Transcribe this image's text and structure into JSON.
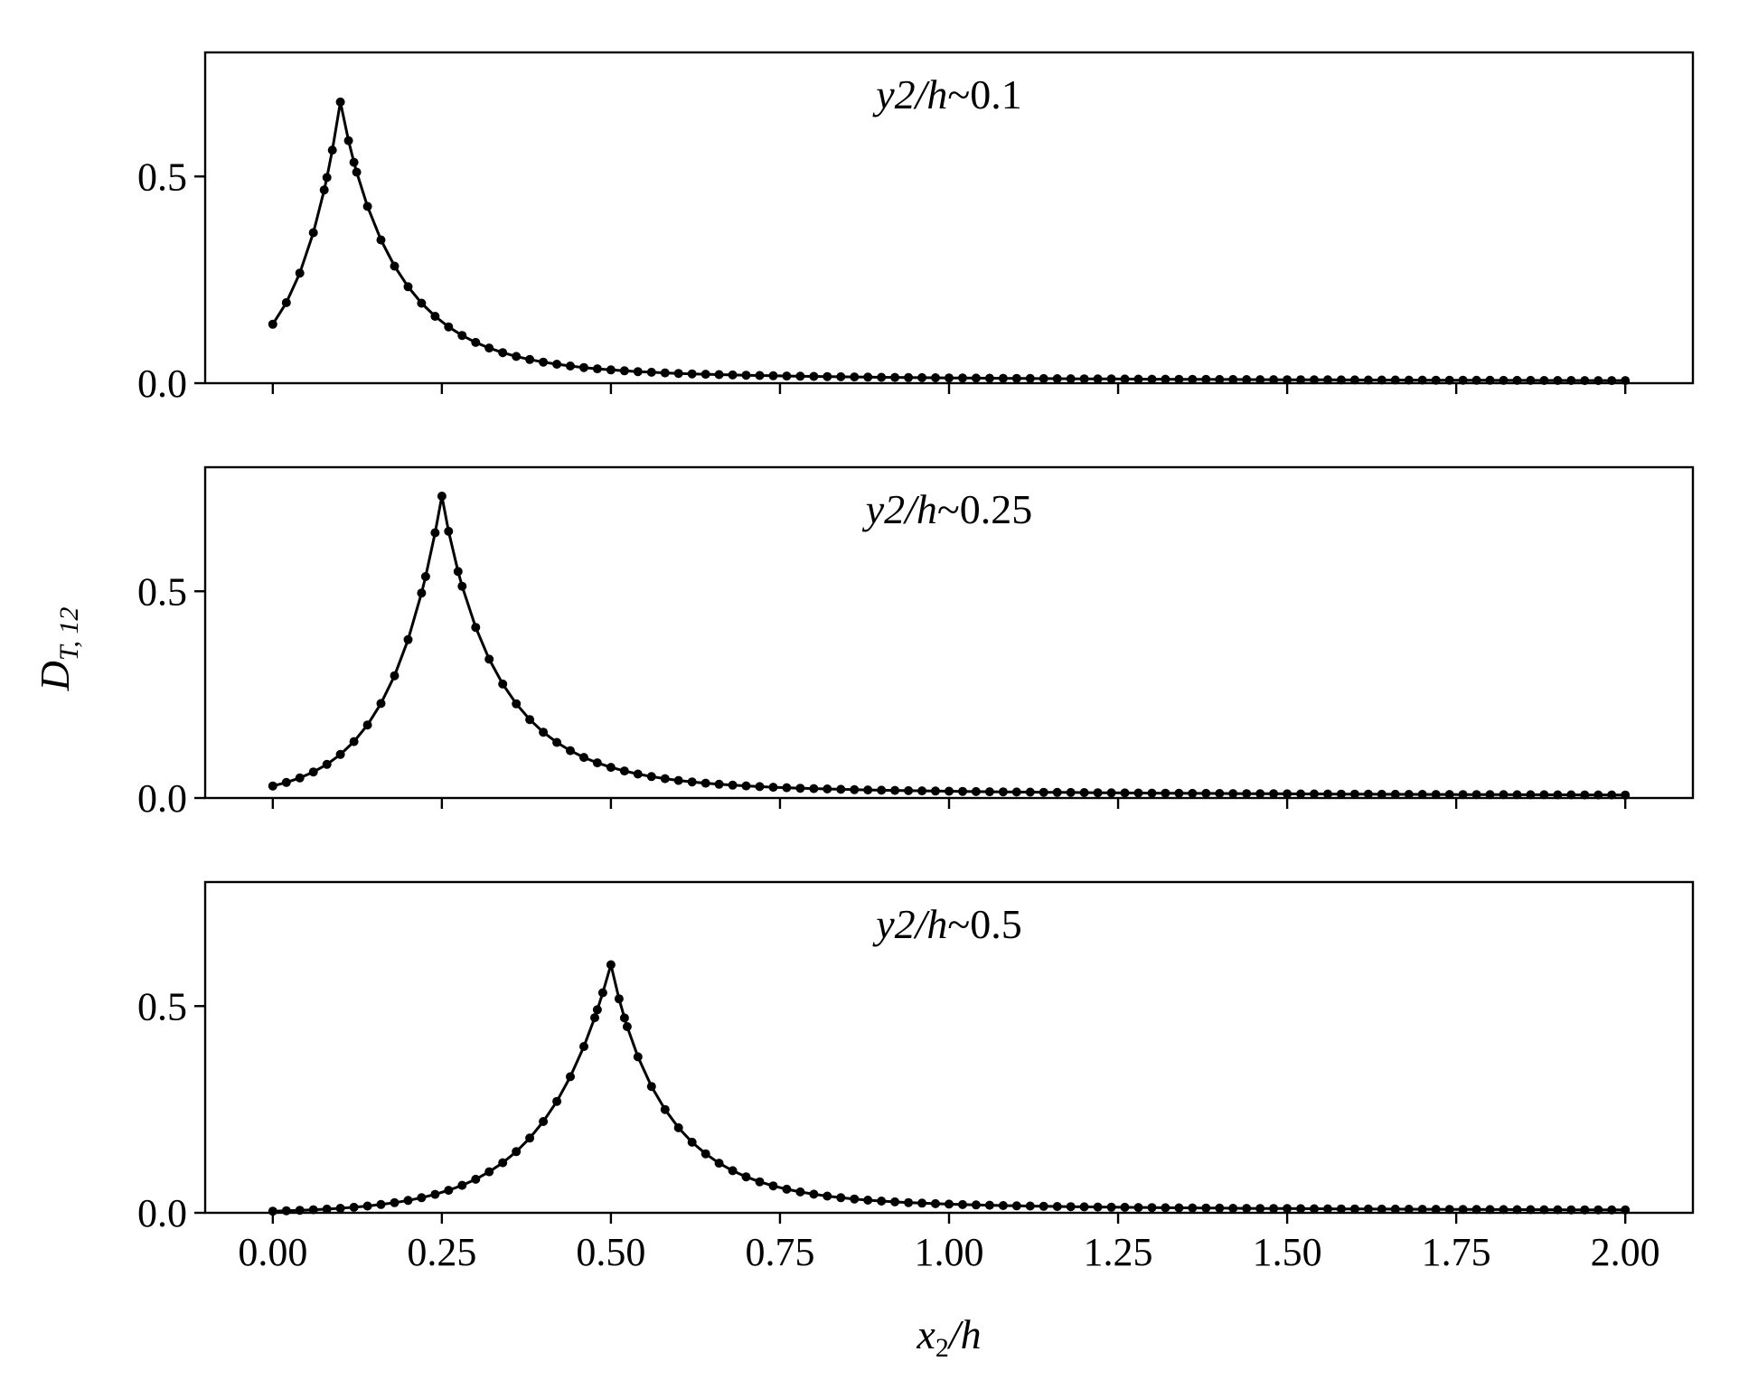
{
  "chart_data": [
    {
      "type": "line",
      "annotation": {
        "var": "y2/h",
        "sep": "~",
        "value": "0.1"
      },
      "peak_x": 0.1,
      "peak_y": 0.68,
      "xlim": [
        -0.1,
        2.1
      ],
      "ylim": [
        0,
        0.8
      ],
      "yticks": [
        "0.0",
        "0.5"
      ],
      "marker": "point",
      "color": "#000000"
    },
    {
      "type": "line",
      "annotation": {
        "var": "y2/h",
        "sep": "~",
        "value": "0.25"
      },
      "peak_x": 0.25,
      "peak_y": 0.73,
      "xlim": [
        -0.1,
        2.1
      ],
      "ylim": [
        0,
        0.8
      ],
      "yticks": [
        "0.0",
        "0.5"
      ],
      "marker": "point",
      "color": "#000000"
    },
    {
      "type": "line",
      "annotation": {
        "var": "y2/h",
        "sep": "~",
        "value": "0.5"
      },
      "peak_x": 0.5,
      "peak_y": 0.6,
      "xlim": [
        -0.1,
        2.1
      ],
      "ylim": [
        0,
        0.8
      ],
      "yticks": [
        "0.0",
        "0.5"
      ],
      "marker": "point",
      "color": "#000000"
    }
  ],
  "xticks": [
    "0.00",
    "0.25",
    "0.50",
    "0.75",
    "1.00",
    "1.25",
    "1.50",
    "1.75",
    "2.00"
  ],
  "xlabel": {
    "base": "x",
    "sub": "2",
    "rest": "/h"
  },
  "ylabel": {
    "base": "D",
    "sub": "T, 12"
  }
}
